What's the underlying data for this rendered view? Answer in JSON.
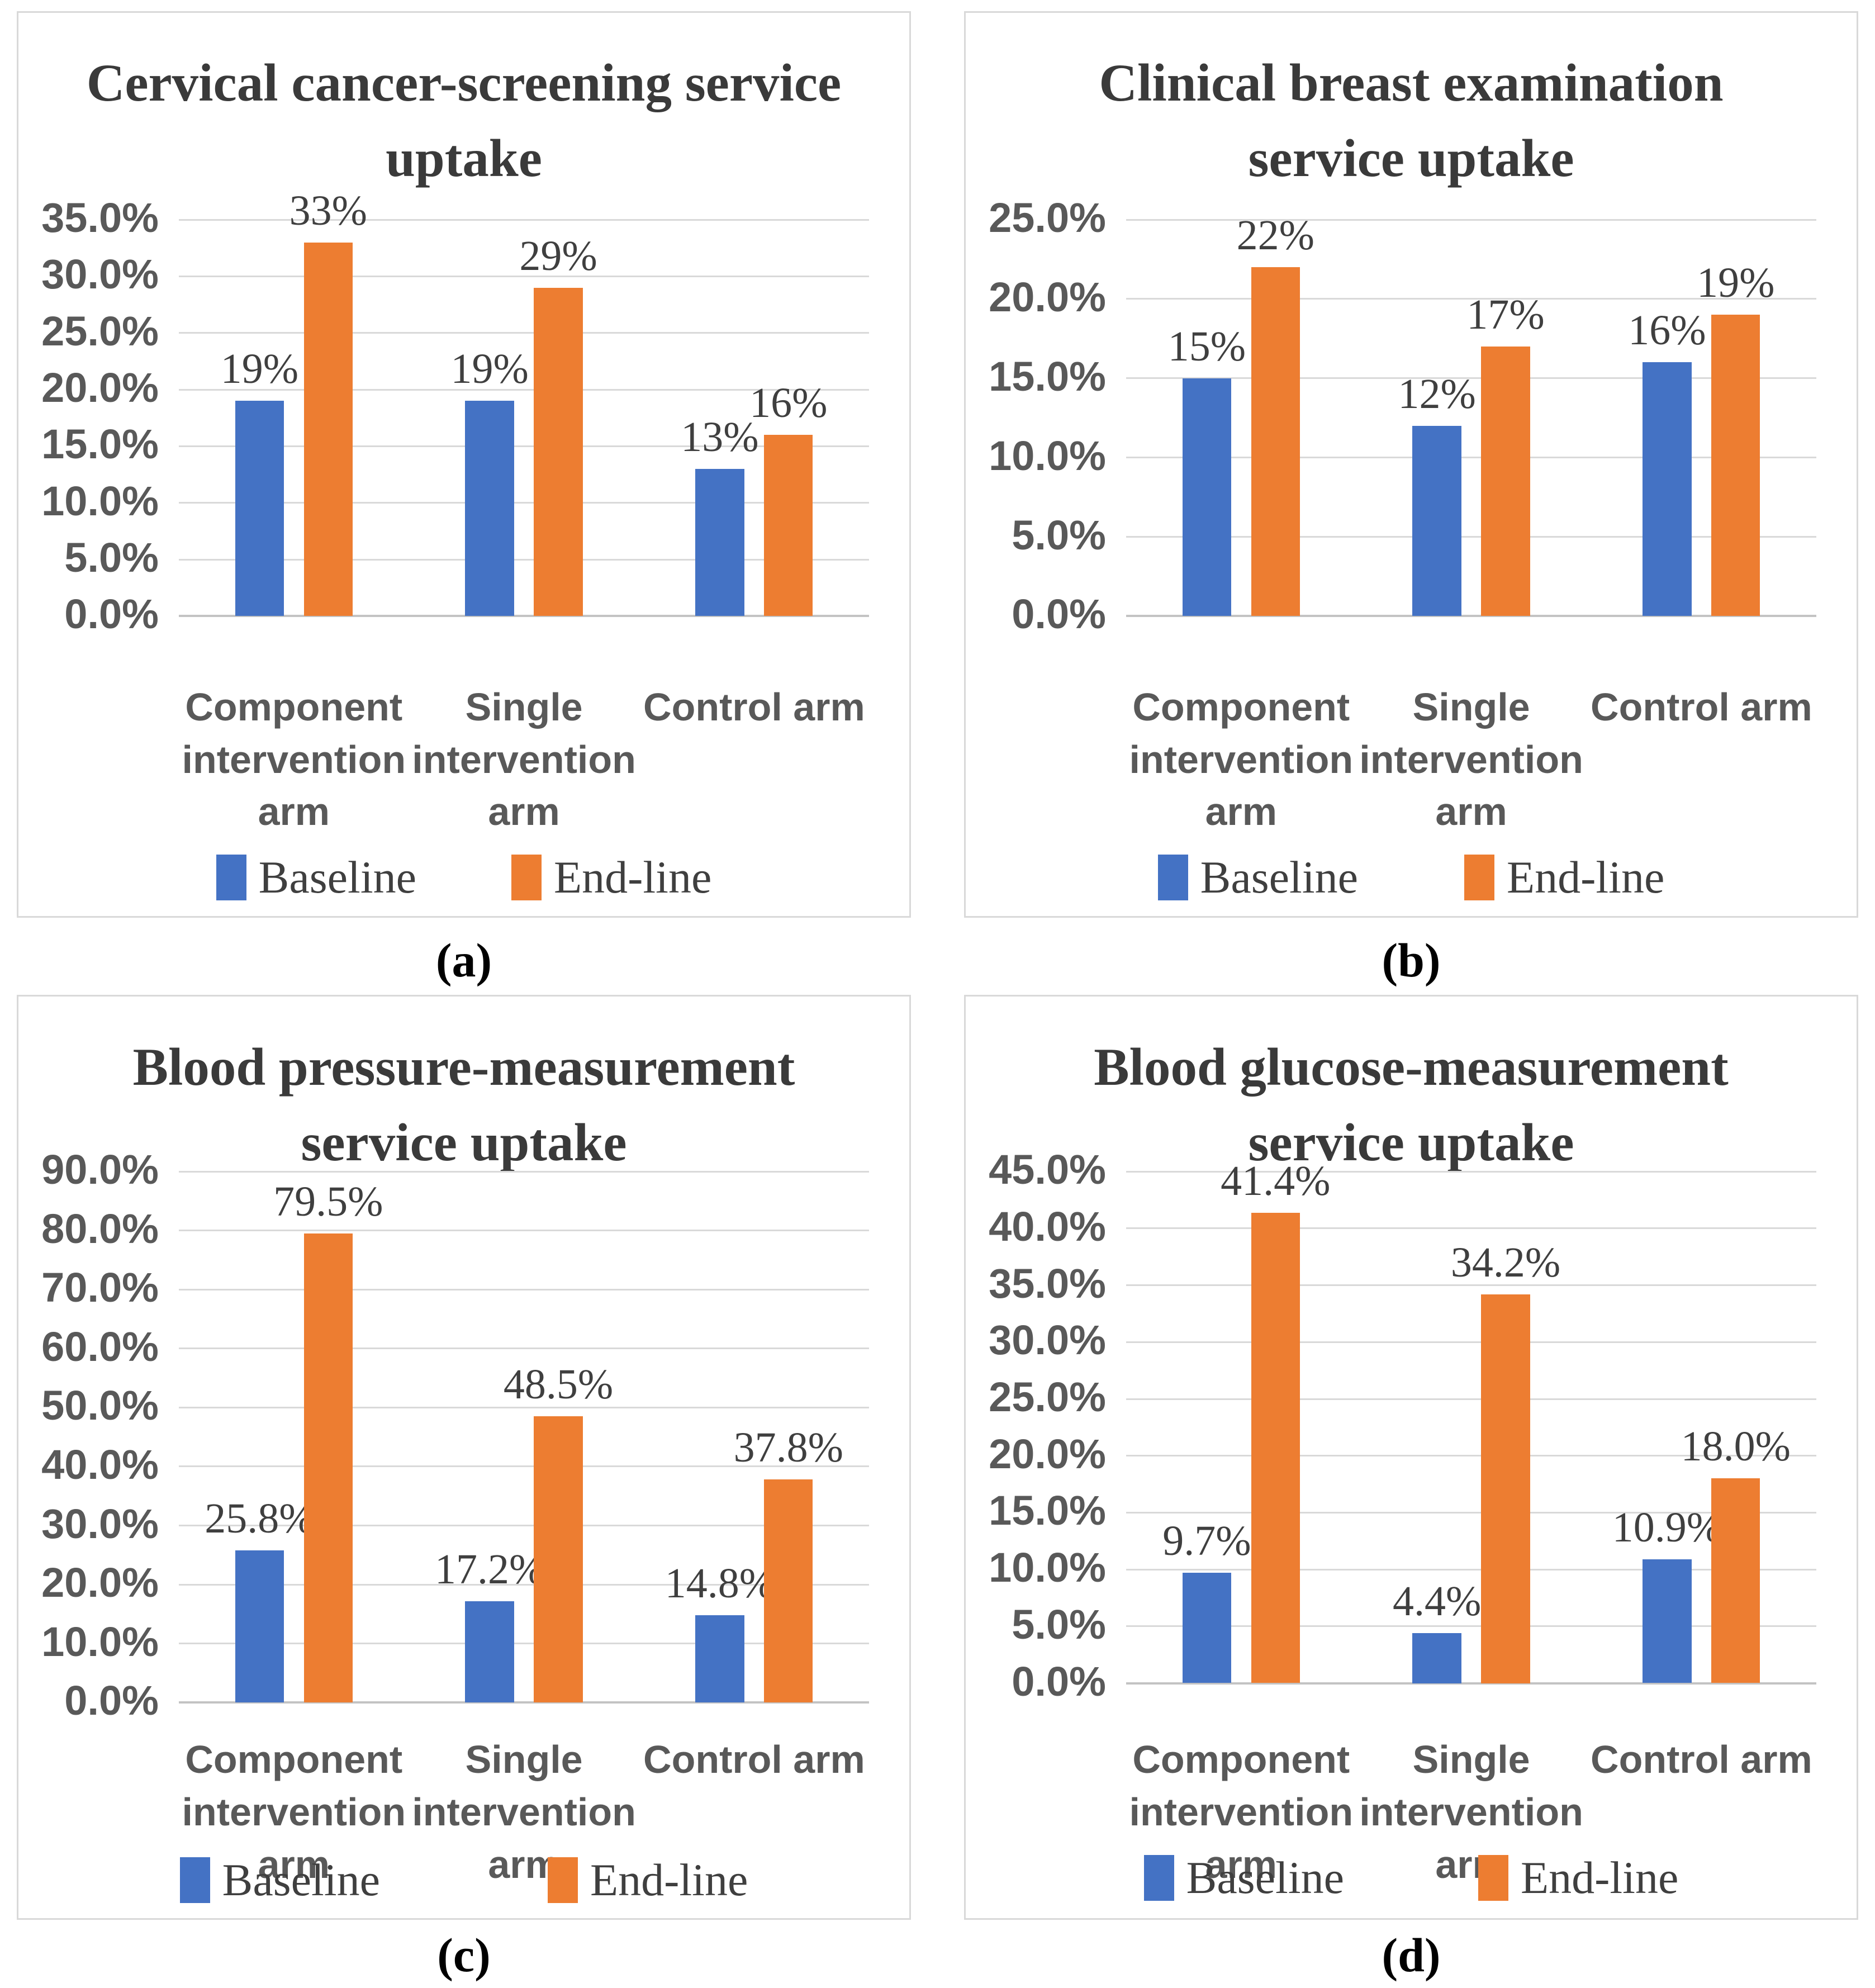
{
  "figure": {
    "legend_labels": [
      "Baseline",
      "End-line"
    ],
    "colors": {
      "baseline": "#4472C4",
      "endline": "#ED7D31",
      "gridline": "#D9D9D9",
      "axis_line": "#C3C3C3",
      "panel_border": "#D9D9D9",
      "title_text": "#3A3A3A",
      "tick_text": "#595959",
      "category_text": "#595959",
      "label_text": "#3F3F3F",
      "caption_text": "#000000"
    }
  },
  "chart_data": [
    {
      "type": "bar",
      "panel": "a",
      "caption": "(a)",
      "title": "Cervical cancer-screening service uptake",
      "title_lines": [
        "Cervical cancer-screening service",
        "uptake"
      ],
      "categories": [
        "Component intervention arm",
        "Single intervention arm",
        "Control arm"
      ],
      "series": [
        {
          "name": "Baseline",
          "values": [
            19,
            19,
            13
          ],
          "labels": [
            "19%",
            "19%",
            "13%"
          ]
        },
        {
          "name": "End-line",
          "values": [
            33,
            29,
            16
          ],
          "labels": [
            "33%",
            "29%",
            "16%"
          ]
        }
      ],
      "ylim": [
        0,
        35
      ],
      "y_step": 5,
      "y_tick_labels": [
        "35.0%",
        "30.0%",
        "25.0%",
        "20.0%",
        "15.0%",
        "10.0%",
        "5.0%",
        "0.0%"
      ],
      "legend": [
        "Baseline",
        "End-line"
      ],
      "grid": true,
      "legend_position": "bottom"
    },
    {
      "type": "bar",
      "panel": "b",
      "caption": "(b)",
      "title": "Clinical breast examination service uptake",
      "title_lines": [
        "Clinical breast examination",
        "service uptake"
      ],
      "categories": [
        "Component intervention arm",
        "Single intervention arm",
        "Control arm"
      ],
      "series": [
        {
          "name": "Baseline",
          "values": [
            15,
            12,
            16
          ],
          "labels": [
            "15%",
            "12%",
            "16%"
          ]
        },
        {
          "name": "End-line",
          "values": [
            22,
            17,
            19
          ],
          "labels": [
            "22%",
            "17%",
            "19%"
          ]
        }
      ],
      "ylim": [
        0,
        25
      ],
      "y_step": 5,
      "y_tick_labels": [
        "25.0%",
        "20.0%",
        "15.0%",
        "10.0%",
        "5.0%",
        "0.0%"
      ],
      "legend": [
        "Baseline",
        "End-line"
      ],
      "grid": true,
      "legend_position": "bottom"
    },
    {
      "type": "bar",
      "panel": "c",
      "caption": "(c)",
      "title": "Blood pressure-measurement service uptake",
      "title_lines": [
        "Blood pressure-measurement",
        "service uptake"
      ],
      "categories": [
        "Component intervention arm",
        "Single intervention arm",
        "Control arm"
      ],
      "series": [
        {
          "name": "Baseline",
          "values": [
            25.8,
            17.2,
            14.8
          ],
          "labels": [
            "25.8%",
            "17.2%",
            "14.8%"
          ]
        },
        {
          "name": "End-line",
          "values": [
            79.5,
            48.5,
            37.8
          ],
          "labels": [
            "79.5%",
            "48.5%",
            "37.8%"
          ]
        }
      ],
      "ylim": [
        0,
        90
      ],
      "y_step": 10,
      "y_tick_labels": [
        "90.0%",
        "80.0%",
        "70.0%",
        "60.0%",
        "50.0%",
        "40.0%",
        "30.0%",
        "20.0%",
        "10.0%",
        "0.0%"
      ],
      "legend": [
        "Baseline",
        "End-line"
      ],
      "grid": true,
      "legend_position": "bottom"
    },
    {
      "type": "bar",
      "panel": "d",
      "caption": "(d)",
      "title": "Blood glucose-measurement service uptake",
      "title_lines": [
        "Blood glucose-measurement",
        "service uptake"
      ],
      "categories": [
        "Component intervention arm",
        "Single intervention arm",
        "Control arm"
      ],
      "series": [
        {
          "name": "Baseline",
          "values": [
            9.7,
            4.4,
            10.9
          ],
          "labels": [
            "9.7%",
            "4.4%",
            "10.9%"
          ]
        },
        {
          "name": "End-line",
          "values": [
            41.4,
            34.2,
            18.0
          ],
          "labels": [
            "41.4%",
            "34.2%",
            "18.0%"
          ]
        }
      ],
      "ylim": [
        0,
        45
      ],
      "y_step": 5,
      "y_tick_labels": [
        "45.0%",
        "40.0%",
        "35.0%",
        "30.0%",
        "25.0%",
        "20.0%",
        "15.0%",
        "10.0%",
        "5.0%",
        "0.0%"
      ],
      "legend": [
        "Baseline",
        "End-line"
      ],
      "grid": true,
      "legend_position": "bottom"
    }
  ]
}
